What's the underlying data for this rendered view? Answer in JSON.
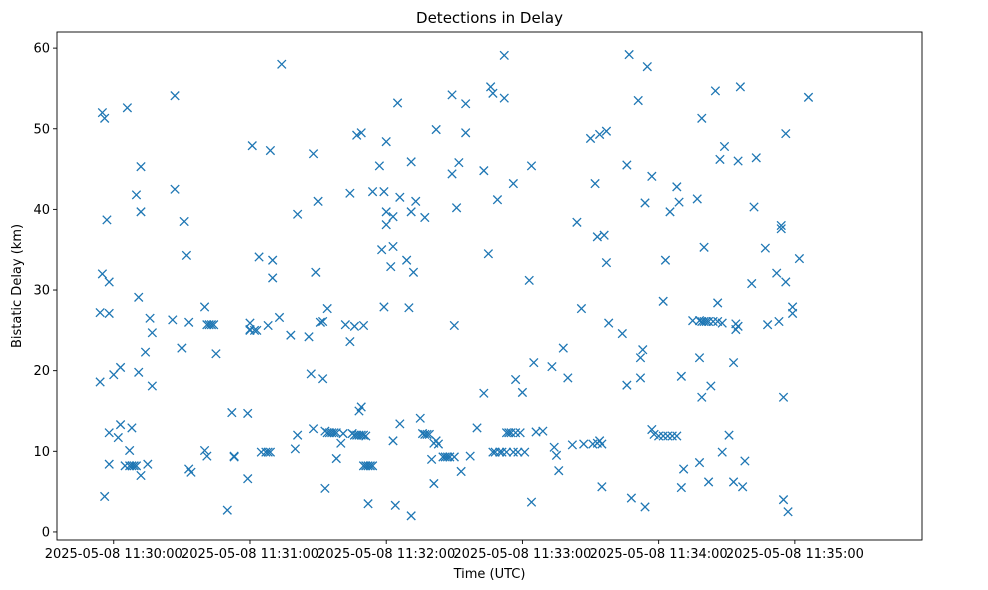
{
  "chart_data": {
    "type": "scatter",
    "title": "Detections in Delay",
    "xlabel": "Time (UTC)",
    "ylabel": "Bistatic Delay (km)",
    "marker": "x",
    "color": "#1f77b4",
    "xlim_seconds": [
      -25,
      356
    ],
    "xtick_seconds": [
      0,
      60,
      120,
      180,
      240,
      300
    ],
    "xtick_labels": [
      "2025-05-08 11:30:00",
      "2025-05-08 11:31:00",
      "2025-05-08 11:32:00",
      "2025-05-08 11:33:00",
      "2025-05-08 11:34:00",
      "2025-05-08 11:35:00"
    ],
    "ylim": [
      -1,
      62
    ],
    "yticks": [
      0,
      10,
      20,
      30,
      40,
      50,
      60
    ],
    "x_note": "seconds after 2025-05-08 11:30:00 UTC",
    "series": [
      {
        "name": "detections",
        "points": [
          [
            -6,
            27.2
          ],
          [
            -6,
            18.6
          ],
          [
            -5,
            52
          ],
          [
            -5,
            32
          ],
          [
            -4,
            51.3
          ],
          [
            -4,
            4.4
          ],
          [
            -3,
            38.7
          ],
          [
            -2,
            31
          ],
          [
            -2,
            27.1
          ],
          [
            -2,
            12.3
          ],
          [
            -2,
            8.4
          ],
          [
            0,
            19.5
          ],
          [
            2,
            11.7
          ],
          [
            3,
            20.4
          ],
          [
            3,
            13.3
          ],
          [
            5,
            8.2
          ],
          [
            6,
            52.6
          ],
          [
            7,
            10.1
          ],
          [
            7,
            8.2
          ],
          [
            8,
            12.9
          ],
          [
            8,
            8.2
          ],
          [
            9,
            8.2
          ],
          [
            10,
            41.8
          ],
          [
            10,
            8.2
          ],
          [
            11,
            29.1
          ],
          [
            11,
            19.8
          ],
          [
            12,
            45.3
          ],
          [
            12,
            39.7
          ],
          [
            12,
            7
          ],
          [
            14,
            22.3
          ],
          [
            15,
            8.4
          ],
          [
            16,
            26.5
          ],
          [
            17,
            24.7
          ],
          [
            17,
            18.1
          ],
          [
            26,
            26.3
          ],
          [
            27,
            54.1
          ],
          [
            27,
            42.5
          ],
          [
            30,
            22.8
          ],
          [
            31,
            38.5
          ],
          [
            32,
            34.3
          ],
          [
            33,
            26
          ],
          [
            33,
            7.8
          ],
          [
            34,
            7.4
          ],
          [
            40,
            27.9
          ],
          [
            40,
            10.1
          ],
          [
            41,
            25.7
          ],
          [
            41,
            9.4
          ],
          [
            42,
            25.7
          ],
          [
            43,
            25.7
          ],
          [
            44,
            25.7
          ],
          [
            45,
            22.1
          ],
          [
            50,
            2.7
          ],
          [
            52,
            14.8
          ],
          [
            53,
            9.4
          ],
          [
            53,
            9.3
          ],
          [
            59,
            14.7
          ],
          [
            59,
            6.6
          ],
          [
            60,
            25.9
          ],
          [
            60,
            25.1
          ],
          [
            60,
            25
          ],
          [
            61,
            47.9
          ],
          [
            62,
            25
          ],
          [
            63,
            25
          ],
          [
            64,
            34.1
          ],
          [
            65,
            9.9
          ],
          [
            67,
            9.9
          ],
          [
            68,
            25.6
          ],
          [
            68,
            9.9
          ],
          [
            69,
            47.3
          ],
          [
            69,
            9.9
          ],
          [
            70,
            33.7
          ],
          [
            70,
            31.5
          ],
          [
            73,
            26.6
          ],
          [
            74,
            58
          ],
          [
            78,
            24.4
          ],
          [
            80,
            10.3
          ],
          [
            81,
            39.4
          ],
          [
            81,
            12
          ],
          [
            86,
            24.2
          ],
          [
            87,
            19.6
          ],
          [
            88,
            46.9
          ],
          [
            88,
            12.8
          ],
          [
            89,
            32.2
          ],
          [
            90,
            41
          ],
          [
            91,
            26
          ],
          [
            92,
            26.1
          ],
          [
            92,
            19
          ],
          [
            93,
            12.5
          ],
          [
            93,
            5.4
          ],
          [
            94,
            27.7
          ],
          [
            94,
            12.3
          ],
          [
            95,
            12.3
          ],
          [
            96,
            12.3
          ],
          [
            97,
            12.3
          ],
          [
            98,
            12.3
          ],
          [
            98,
            9.1
          ],
          [
            100,
            11
          ],
          [
            101,
            12.2
          ],
          [
            102,
            25.7
          ],
          [
            104,
            42
          ],
          [
            104,
            23.6
          ],
          [
            105,
            12.2
          ],
          [
            106,
            25.5
          ],
          [
            106,
            12
          ],
          [
            107,
            49.2
          ],
          [
            107,
            12
          ],
          [
            108,
            15
          ],
          [
            108,
            12
          ],
          [
            109,
            49.5
          ],
          [
            109,
            15.5
          ],
          [
            109,
            12
          ],
          [
            110,
            25.6
          ],
          [
            110,
            12
          ],
          [
            110,
            8.2
          ],
          [
            111,
            11.9
          ],
          [
            111,
            8.2
          ],
          [
            112,
            8.2
          ],
          [
            112,
            3.5
          ],
          [
            113,
            8.2
          ],
          [
            114,
            42.2
          ],
          [
            114,
            8.2
          ],
          [
            117,
            45.4
          ],
          [
            118,
            35
          ],
          [
            119,
            42.2
          ],
          [
            119,
            27.9
          ],
          [
            120,
            48.4
          ],
          [
            120,
            39.7
          ],
          [
            120,
            38.1
          ],
          [
            122,
            32.9
          ],
          [
            123,
            39.1
          ],
          [
            123,
            35.4
          ],
          [
            123,
            11.3
          ],
          [
            124,
            3.3
          ],
          [
            125,
            53.2
          ],
          [
            126,
            41.5
          ],
          [
            126,
            13.4
          ],
          [
            129,
            33.7
          ],
          [
            130,
            27.8
          ],
          [
            131,
            45.9
          ],
          [
            131,
            39.7
          ],
          [
            131,
            2
          ],
          [
            132,
            32.2
          ],
          [
            133,
            41
          ],
          [
            135,
            14.1
          ],
          [
            136,
            12.2
          ],
          [
            137,
            39
          ],
          [
            137,
            12.1
          ],
          [
            138,
            12.1
          ],
          [
            139,
            12.1
          ],
          [
            140,
            9
          ],
          [
            141,
            11
          ],
          [
            141,
            6
          ],
          [
            142,
            49.9
          ],
          [
            142,
            11.3
          ],
          [
            143,
            10.9
          ],
          [
            145,
            9.3
          ],
          [
            146,
            9.3
          ],
          [
            147,
            9.3
          ],
          [
            148,
            9.3
          ],
          [
            149,
            54.2
          ],
          [
            149,
            44.4
          ],
          [
            150,
            25.6
          ],
          [
            150,
            9.3
          ],
          [
            151,
            40.2
          ],
          [
            152,
            45.8
          ],
          [
            153,
            7.5
          ],
          [
            155,
            53.1
          ],
          [
            155,
            49.5
          ],
          [
            157,
            9.4
          ],
          [
            160,
            12.9
          ],
          [
            163,
            44.8
          ],
          [
            163,
            17.2
          ],
          [
            165,
            34.5
          ],
          [
            166,
            55.2
          ],
          [
            167,
            54.4
          ],
          [
            167,
            9.9
          ],
          [
            168,
            9.9
          ],
          [
            169,
            41.2
          ],
          [
            170,
            9.9
          ],
          [
            171,
            9.9
          ],
          [
            172,
            59.1
          ],
          [
            172,
            53.8
          ],
          [
            173,
            12.3
          ],
          [
            173,
            9.9
          ],
          [
            174,
            12.3
          ],
          [
            175,
            12.3
          ],
          [
            176,
            43.2
          ],
          [
            176,
            9.9
          ],
          [
            177,
            18.9
          ],
          [
            177,
            12.3
          ],
          [
            178,
            9.9
          ],
          [
            179,
            12.3
          ],
          [
            180,
            17.3
          ],
          [
            181,
            9.9
          ],
          [
            183,
            31.2
          ],
          [
            184,
            45.4
          ],
          [
            184,
            3.7
          ],
          [
            185,
            21
          ],
          [
            186,
            12.4
          ],
          [
            189,
            12.5
          ],
          [
            193,
            20.5
          ],
          [
            194,
            10.5
          ],
          [
            195,
            9.5
          ],
          [
            196,
            7.6
          ],
          [
            198,
            22.8
          ],
          [
            200,
            19.1
          ],
          [
            202,
            10.8
          ],
          [
            204,
            38.4
          ],
          [
            206,
            27.7
          ],
          [
            207,
            10.9
          ],
          [
            210,
            48.8
          ],
          [
            211,
            10.9
          ],
          [
            212,
            43.2
          ],
          [
            213,
            36.6
          ],
          [
            213,
            11
          ],
          [
            214,
            49.3
          ],
          [
            214,
            11.3
          ],
          [
            215,
            5.6
          ],
          [
            215,
            10.9
          ],
          [
            216,
            36.8
          ],
          [
            217,
            49.7
          ],
          [
            217,
            33.4
          ],
          [
            218,
            25.9
          ],
          [
            224,
            24.6
          ],
          [
            226,
            45.5
          ],
          [
            226,
            18.2
          ],
          [
            227,
            59.2
          ],
          [
            228,
            4.2
          ],
          [
            231,
            53.5
          ],
          [
            232,
            21.6
          ],
          [
            232,
            19.1
          ],
          [
            233,
            22.6
          ],
          [
            234,
            40.8
          ],
          [
            234,
            3.1
          ],
          [
            235,
            57.7
          ],
          [
            237,
            44.1
          ],
          [
            237,
            12.7
          ],
          [
            238,
            12.1
          ],
          [
            240,
            11.9
          ],
          [
            242,
            28.6
          ],
          [
            242,
            11.9
          ],
          [
            243,
            33.7
          ],
          [
            244,
            11.9
          ],
          [
            245,
            39.7
          ],
          [
            246,
            11.9
          ],
          [
            248,
            42.8
          ],
          [
            248,
            11.9
          ],
          [
            249,
            40.9
          ],
          [
            250,
            19.3
          ],
          [
            250,
            5.5
          ],
          [
            251,
            7.8
          ],
          [
            255,
            26.2
          ],
          [
            257,
            41.3
          ],
          [
            258,
            26.2
          ],
          [
            258,
            21.6
          ],
          [
            258,
            8.6
          ],
          [
            259,
            51.3
          ],
          [
            259,
            26.1
          ],
          [
            259,
            16.7
          ],
          [
            260,
            35.3
          ],
          [
            260,
            26.1
          ],
          [
            261,
            26.1
          ],
          [
            262,
            26.1
          ],
          [
            262,
            6.2
          ],
          [
            263,
            18.1
          ],
          [
            264,
            26.1
          ],
          [
            265,
            54.7
          ],
          [
            266,
            28.4
          ],
          [
            266,
            26.1
          ],
          [
            267,
            46.2
          ],
          [
            268,
            9.9
          ],
          [
            268,
            25.9
          ],
          [
            269,
            47.8
          ],
          [
            271,
            12
          ],
          [
            273,
            21
          ],
          [
            273,
            6.2
          ],
          [
            274,
            25.8
          ],
          [
            274,
            25.1
          ],
          [
            275,
            46
          ],
          [
            275,
            25.5
          ],
          [
            276,
            55.2
          ],
          [
            277,
            5.6
          ],
          [
            278,
            8.8
          ],
          [
            281,
            30.8
          ],
          [
            282,
            40.3
          ],
          [
            283,
            46.4
          ],
          [
            287,
            35.2
          ],
          [
            288,
            25.7
          ],
          [
            292,
            32.1
          ],
          [
            293,
            26.1
          ],
          [
            294,
            38
          ],
          [
            294,
            37.6
          ],
          [
            295,
            16.7
          ],
          [
            295,
            4
          ],
          [
            296,
            49.4
          ],
          [
            296,
            31
          ],
          [
            297,
            2.5
          ],
          [
            299,
            27.9
          ],
          [
            299,
            27.1
          ],
          [
            302,
            33.9
          ],
          [
            306,
            53.9
          ]
        ]
      }
    ]
  }
}
